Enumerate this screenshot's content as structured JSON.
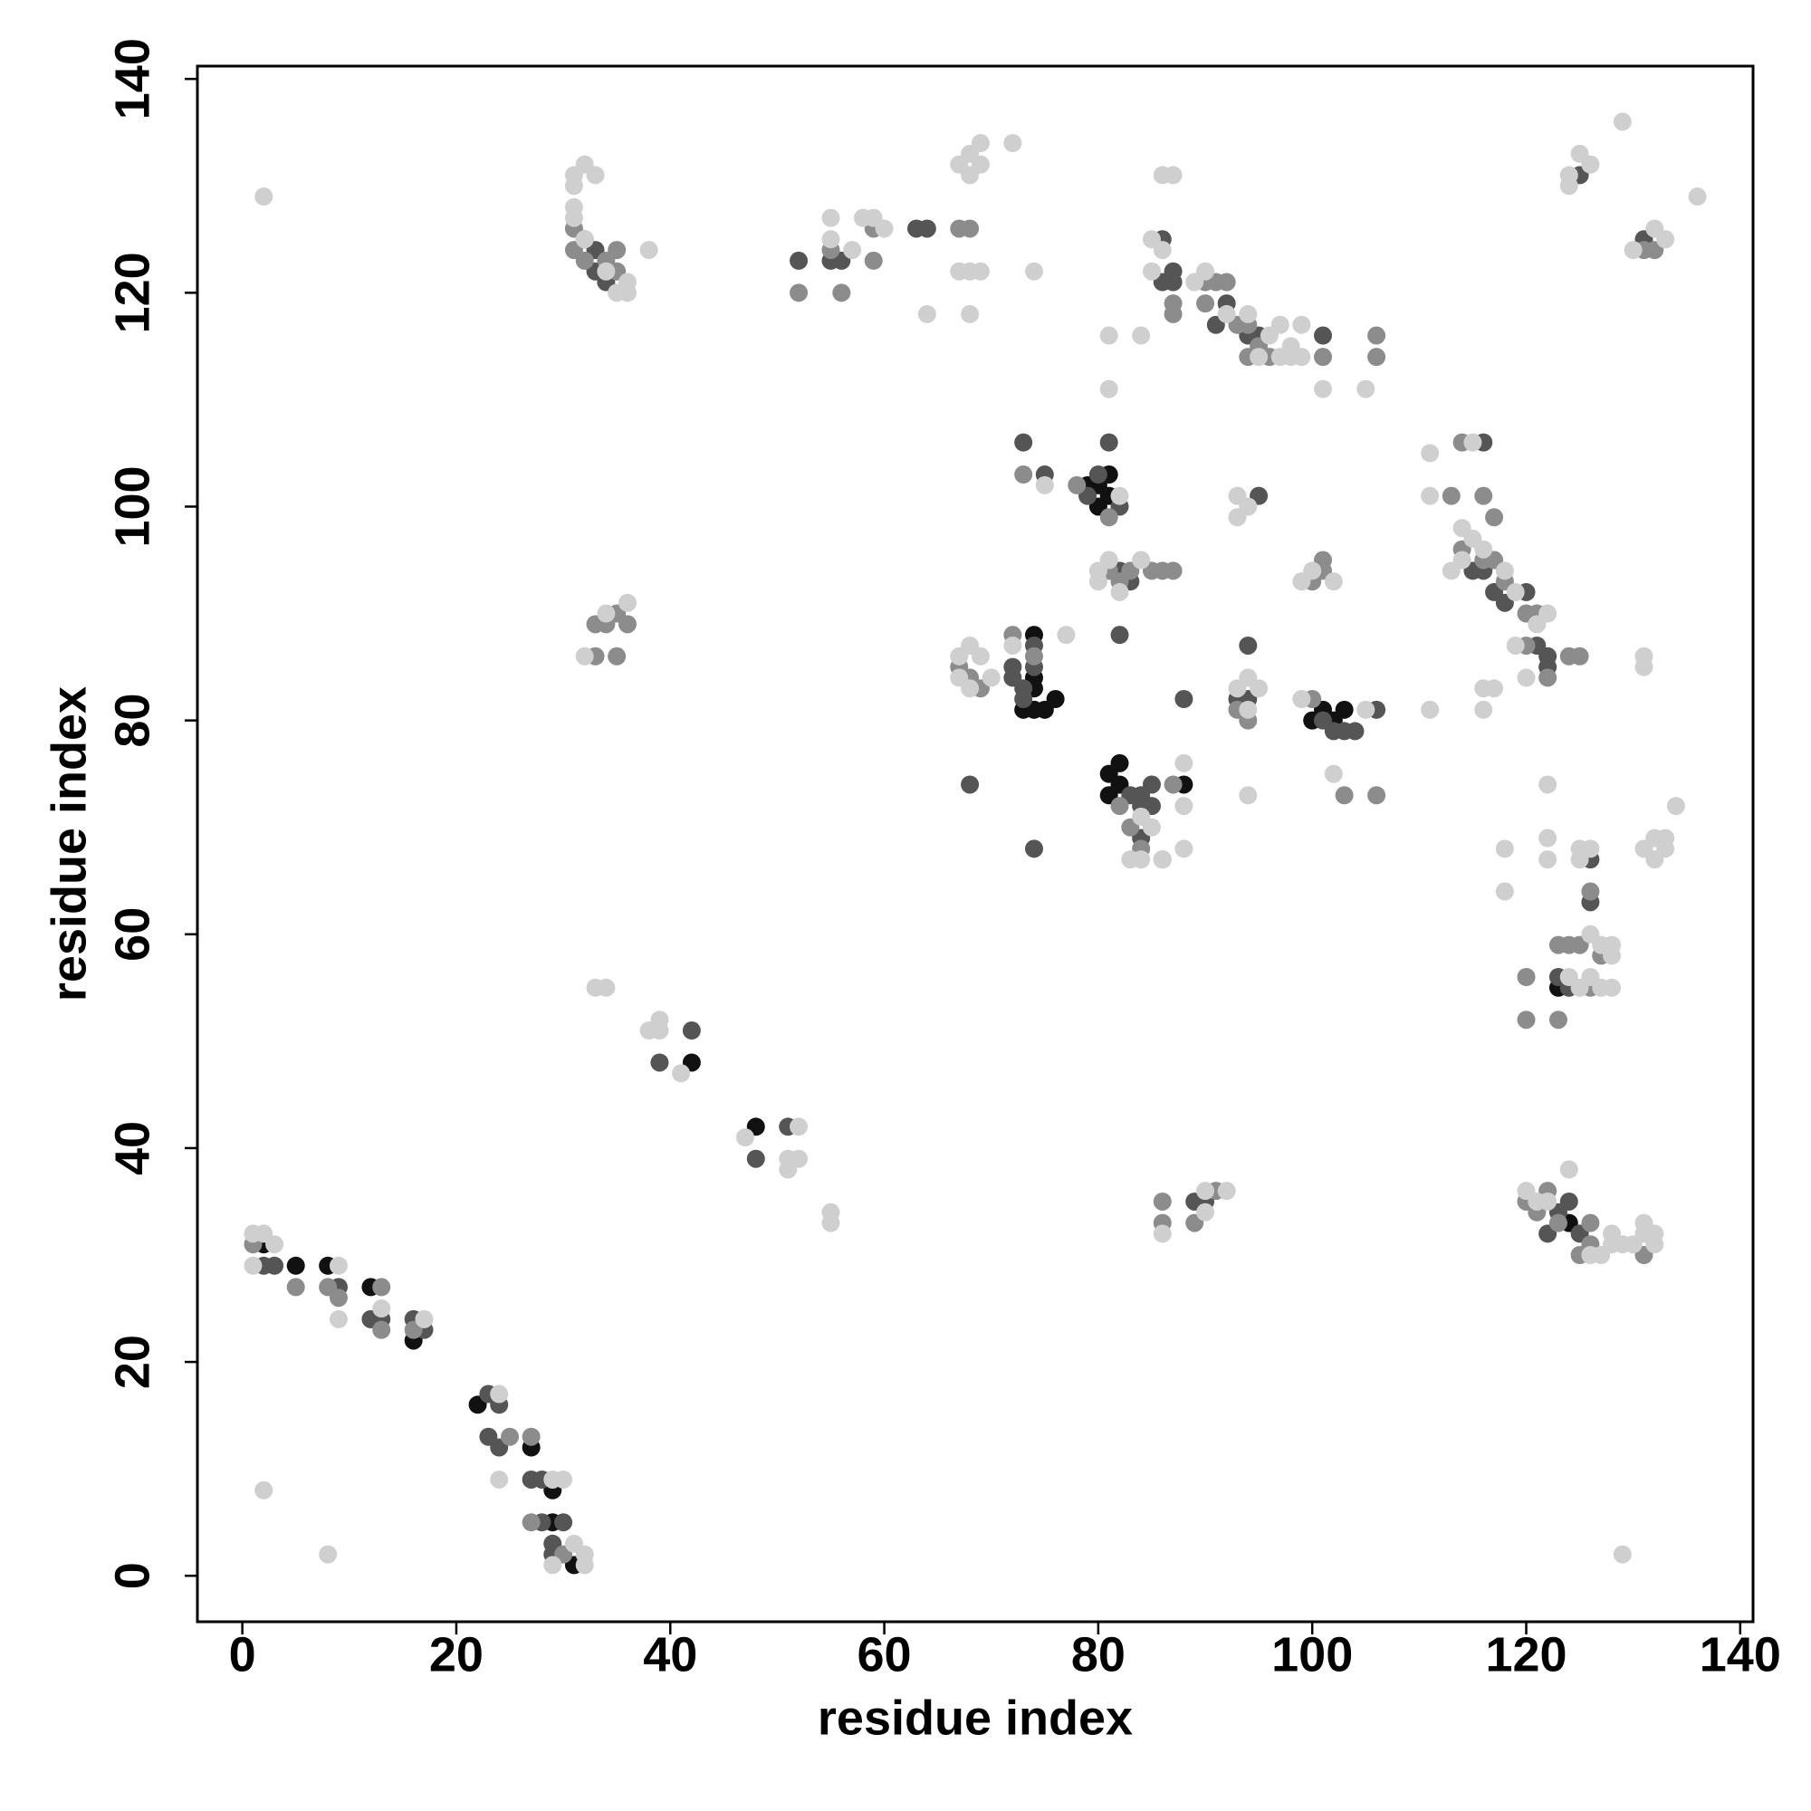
{
  "chart_data": {
    "type": "scatter",
    "xlabel": "residue index",
    "ylabel": "residue index",
    "xlim": [
      -4.2,
      141.2
    ],
    "ylim": [
      -4.3,
      141.2
    ],
    "xticks": [
      0,
      20,
      40,
      60,
      80,
      100,
      120,
      140
    ],
    "yticks": [
      0,
      20,
      40,
      60,
      80,
      100,
      120,
      140
    ],
    "grid": false,
    "series": [
      {
        "color": "#111111",
        "x": [
          2,
          5,
          8,
          12,
          16,
          22,
          27,
          29,
          31,
          29,
          42,
          48,
          74,
          74,
          73,
          75,
          76,
          74,
          74,
          80,
          81,
          81,
          80,
          79,
          82,
          81,
          81,
          82,
          88,
          101,
          102,
          103,
          100,
          124,
          123
        ],
        "values": [
          31,
          29,
          29,
          27,
          22,
          16,
          12,
          5,
          1,
          8,
          48,
          42,
          88,
          81,
          81,
          81,
          82,
          84,
          83,
          102,
          103,
          101,
          100,
          102,
          76,
          75,
          73,
          74,
          74,
          81,
          80,
          81,
          80,
          33,
          55
        ]
      },
      {
        "color": "#555555",
        "x": [
          2,
          3,
          9,
          12,
          13,
          16,
          17,
          23,
          23,
          24,
          24,
          28,
          27,
          28,
          29,
          29,
          30,
          33,
          32,
          33,
          34,
          52,
          55,
          56,
          63,
          64,
          48,
          39,
          42,
          51,
          73,
          72,
          72,
          73,
          75,
          74,
          79,
          80,
          82,
          83,
          84,
          84,
          85,
          84,
          82,
          85,
          88,
          89,
          90,
          101,
          102,
          103,
          104,
          106,
          87,
          86,
          87,
          92,
          94,
          95,
          101,
          116,
          115,
          116,
          121,
          122,
          122,
          123,
          124,
          124,
          125,
          126,
          126,
          131,
          125,
          68,
          74,
          93,
          94,
          94,
          95,
          74,
          82,
          83,
          86,
          91,
          117,
          118,
          120,
          122,
          123,
          73,
          81
        ],
        "values": [
          29,
          29,
          27,
          24,
          24,
          24,
          23,
          17,
          13,
          12,
          16,
          9,
          9,
          5,
          3,
          2,
          5,
          124,
          125,
          122,
          121,
          123,
          123,
          123,
          126,
          126,
          39,
          48,
          51,
          42,
          82,
          84,
          85,
          83,
          103,
          85,
          101,
          103,
          100,
          73,
          73,
          72,
          72,
          69,
          88,
          74,
          82,
          35,
          35,
          80,
          79,
          79,
          79,
          81,
          122,
          121,
          121,
          119,
          116,
          116,
          116,
          106,
          94,
          94,
          87,
          86,
          85,
          56,
          55,
          35,
          32,
          63,
          67,
          125,
          131,
          74,
          68,
          82,
          82,
          87,
          101,
          87,
          94,
          93,
          125,
          117,
          92,
          91,
          92,
          32,
          34,
          106,
          106
        ]
      },
      {
        "color": "#8c8c8c",
        "x": [
          1,
          5,
          8,
          9,
          13,
          13,
          16,
          25,
          27,
          27,
          30,
          31,
          31,
          32,
          35,
          35,
          34,
          33,
          34,
          35,
          36,
          33,
          35,
          52,
          56,
          55,
          59,
          59,
          67,
          68,
          67,
          68,
          69,
          72,
          73,
          74,
          78,
          81,
          81,
          82,
          83,
          86,
          82,
          83,
          84,
          86,
          87,
          87,
          87,
          90,
          93,
          94,
          95,
          96,
          101,
          106,
          106,
          86,
          86,
          89,
          91,
          93,
          94,
          100,
          101,
          101,
          100,
          103,
          106,
          114,
          116,
          117,
          117,
          118,
          120,
          121,
          120,
          122,
          124,
          125,
          120,
          120,
          123,
          123,
          124,
          125,
          126,
          126,
          127,
          121,
          122,
          123,
          125,
          126,
          126,
          131,
          131,
          132,
          113,
          116,
          114,
          120,
          91,
          90,
          94,
          92,
          87,
          85
        ],
        "values": [
          31,
          27,
          27,
          26,
          27,
          23,
          23,
          13,
          13,
          5,
          2,
          124,
          126,
          123,
          124,
          122,
          123,
          89,
          89,
          90,
          89,
          86,
          86,
          120,
          120,
          124,
          123,
          126,
          126,
          126,
          85,
          84,
          83,
          88,
          103,
          86,
          102,
          99,
          94,
          93,
          94,
          94,
          72,
          70,
          68,
          67,
          74,
          119,
          118,
          121,
          117,
          114,
          115,
          114,
          114,
          114,
          116,
          35,
          33,
          33,
          36,
          81,
          80,
          82,
          94,
          95,
          93,
          73,
          73,
          96,
          95,
          99,
          95,
          93,
          90,
          90,
          87,
          84,
          86,
          86,
          56,
          52,
          52,
          59,
          59,
          59,
          64,
          55,
          58,
          34,
          36,
          33,
          30,
          33,
          31,
          30,
          124,
          124,
          101,
          101,
          106,
          35,
          121,
          119,
          117,
          121,
          94,
          94
        ]
      },
      {
        "color": "#cfcfcf",
        "x": [
          2,
          2,
          8,
          9,
          9,
          1,
          2,
          3,
          1,
          13,
          17,
          24,
          24,
          30,
          29,
          31,
          32,
          32,
          29,
          31,
          32,
          33,
          31,
          31,
          31,
          32,
          34,
          35,
          36,
          36,
          38,
          32,
          34,
          36,
          33,
          34,
          38,
          39,
          39,
          41,
          47,
          51,
          51,
          52,
          52,
          55,
          55,
          55,
          55,
          57,
          58,
          59,
          60,
          64,
          67,
          68,
          68,
          69,
          69,
          72,
          67,
          68,
          69,
          68,
          74,
          67,
          68,
          69,
          67,
          68,
          70,
          72,
          77,
          75,
          81,
          81,
          84,
          80,
          80,
          81,
          82,
          84,
          82,
          83,
          84,
          86,
          85,
          84,
          88,
          88,
          88,
          86,
          87,
          86,
          85,
          85,
          89,
          90,
          92,
          94,
          95,
          96,
          97,
          97,
          98,
          99,
          99,
          98,
          101,
          105,
          93,
          93,
          94,
          94,
          93,
          94,
          95,
          94,
          99,
          99,
          100,
          102,
          102,
          105,
          86,
          90,
          90,
          92,
          111,
          111,
          111,
          114,
          114,
          115,
          116,
          116,
          116,
          118,
          119,
          119,
          122,
          120,
          118,
          118,
          121,
          122,
          122,
          122,
          125,
          125,
          126,
          127,
          128,
          128,
          127,
          128,
          126,
          124,
          125,
          126,
          120,
          121,
          122,
          124,
          126,
          127,
          128,
          128,
          129,
          130,
          131,
          131,
          132,
          132,
          129,
          129,
          124,
          124,
          125,
          126,
          130,
          132,
          133,
          136,
          131,
          132,
          132,
          133,
          133,
          134,
          131,
          131,
          113,
          115,
          117
        ],
        "values": [
          129,
          8,
          2,
          24,
          29,
          32,
          32,
          31,
          29,
          25,
          24,
          9,
          17,
          9,
          9,
          3,
          2,
          1,
          1,
          131,
          132,
          131,
          130,
          128,
          127,
          125,
          122,
          120,
          120,
          121,
          124,
          86,
          90,
          91,
          55,
          55,
          51,
          51,
          52,
          47,
          41,
          39,
          38,
          39,
          42,
          34,
          33,
          125,
          127,
          124,
          127,
          127,
          126,
          118,
          132,
          131,
          133,
          132,
          134,
          134,
          122,
          122,
          122,
          118,
          122,
          84,
          83,
          86,
          86,
          87,
          84,
          87,
          88,
          102,
          111,
          116,
          116,
          94,
          93,
          95,
          92,
          95,
          101,
          67,
          67,
          67,
          70,
          71,
          68,
          72,
          76,
          131,
          131,
          124,
          125,
          122,
          121,
          122,
          118,
          118,
          114,
          116,
          117,
          114,
          115,
          117,
          114,
          114,
          111,
          111,
          99,
          101,
          100,
          73,
          83,
          84,
          83,
          81,
          82,
          93,
          94,
          93,
          75,
          81,
          32,
          34,
          36,
          36,
          105,
          101,
          81,
          98,
          95,
          97,
          96,
          81,
          83,
          94,
          92,
          87,
          90,
          84,
          68,
          64,
          89,
          74,
          69,
          67,
          67,
          68,
          68,
          59,
          59,
          58,
          55,
          55,
          56,
          56,
          55,
          60,
          36,
          35,
          35,
          38,
          30,
          30,
          31,
          32,
          31,
          31,
          32,
          33,
          32,
          31,
          2,
          136,
          130,
          131,
          133,
          132,
          124,
          126,
          125,
          129,
          68,
          67,
          69,
          68,
          69,
          72,
          86,
          85,
          94,
          106,
          83
        ]
      }
    ]
  }
}
